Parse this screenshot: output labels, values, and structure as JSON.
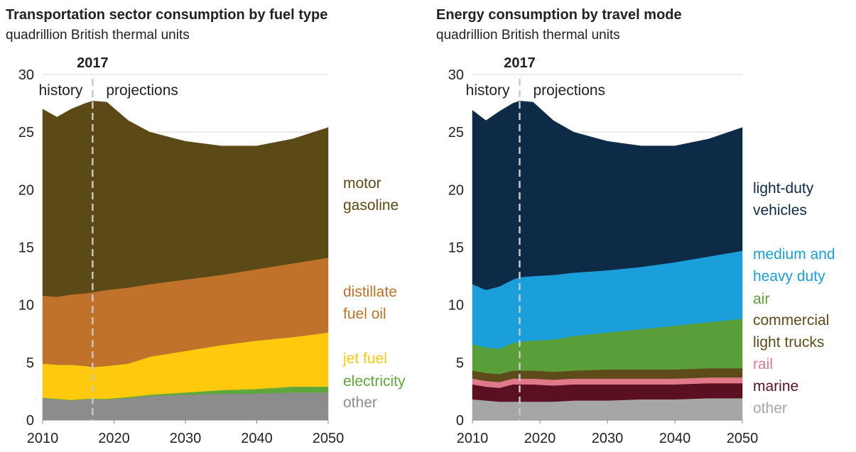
{
  "chart_data": [
    {
      "type": "stacked-area",
      "title": "Transportation sector consumption by fuel type",
      "subtitle": "quadrillion British thermal units",
      "marker": 2017,
      "annotations": [
        "history",
        "projections"
      ],
      "x": [
        2010,
        2012,
        2014,
        2016,
        2017,
        2019,
        2022,
        2025,
        2030,
        2035,
        2040,
        2045,
        2050
      ],
      "xlim": [
        2010,
        2050
      ],
      "xticks": [
        2010,
        2020,
        2030,
        2040,
        2050
      ],
      "ylim": [
        0,
        30
      ],
      "yticks": [
        0,
        5,
        10,
        15,
        20,
        25,
        30
      ],
      "grid": true,
      "series": [
        {
          "name": "other",
          "color": "#8c8c8c",
          "label_color": "#8c8c8c",
          "values": [
            1.9,
            1.8,
            1.7,
            1.8,
            1.8,
            1.8,
            1.9,
            2.1,
            2.2,
            2.3,
            2.3,
            2.4,
            2.4
          ]
        },
        {
          "name": "electricity",
          "color": "#5ea83b",
          "label_color": "#5ea83b",
          "values": [
            0.05,
            0.05,
            0.05,
            0.05,
            0.05,
            0.05,
            0.1,
            0.1,
            0.2,
            0.3,
            0.4,
            0.5,
            0.5
          ]
        },
        {
          "name": "jet fuel",
          "color": "#ffc90e",
          "label_color": "#ffc90e",
          "values": [
            2.95,
            2.95,
            3.05,
            2.85,
            2.75,
            2.85,
            2.9,
            3.3,
            3.6,
            3.9,
            4.2,
            4.3,
            4.7
          ]
        },
        {
          "name": "distillate fuel oil",
          "color": "#c0722a",
          "label_color": "#c0722a",
          "values": [
            5.9,
            5.9,
            6.1,
            6.3,
            6.5,
            6.6,
            6.6,
            6.3,
            6.2,
            6.1,
            6.2,
            6.4,
            6.5
          ]
        },
        {
          "name": "motor gasoline",
          "color": "#5c4a16",
          "label_color": "#5c4a16",
          "values": [
            16.2,
            15.6,
            16.1,
            16.5,
            16.6,
            16.3,
            14.5,
            13.2,
            12.0,
            11.2,
            10.7,
            10.8,
            11.3
          ]
        }
      ]
    },
    {
      "type": "stacked-area",
      "title": "Energy consumption by travel mode",
      "subtitle": "quadrillion British thermal units",
      "marker": 2017,
      "annotations": [
        "history",
        "projections"
      ],
      "x": [
        2010,
        2012,
        2014,
        2016,
        2017,
        2019,
        2022,
        2025,
        2030,
        2035,
        2040,
        2045,
        2050
      ],
      "xlim": [
        2010,
        2050
      ],
      "xticks": [
        2010,
        2020,
        2030,
        2040,
        2050
      ],
      "ylim": [
        0,
        30
      ],
      "yticks": [
        0,
        5,
        10,
        15,
        20,
        25,
        30
      ],
      "grid": true,
      "series": [
        {
          "name": "other",
          "color": "#a6a6a6",
          "label_color": "#a6a6a6",
          "values": [
            1.8,
            1.7,
            1.6,
            1.6,
            1.6,
            1.6,
            1.6,
            1.7,
            1.7,
            1.8,
            1.8,
            1.9,
            1.9
          ]
        },
        {
          "name": "marine",
          "color": "#5a1020",
          "label_color": "#5a1020",
          "values": [
            1.3,
            1.2,
            1.2,
            1.5,
            1.5,
            1.5,
            1.4,
            1.4,
            1.4,
            1.3,
            1.3,
            1.3,
            1.3
          ]
        },
        {
          "name": "rail",
          "color": "#e07a8a",
          "label_color": "#e07a8a",
          "values": [
            0.5,
            0.5,
            0.5,
            0.5,
            0.5,
            0.5,
            0.5,
            0.5,
            0.5,
            0.5,
            0.5,
            0.5,
            0.5
          ]
        },
        {
          "name": "commercial light trucks",
          "color": "#5e4b1a",
          "label_color": "#5e4b1a",
          "values": [
            0.7,
            0.7,
            0.7,
            0.7,
            0.7,
            0.7,
            0.7,
            0.7,
            0.8,
            0.8,
            0.8,
            0.8,
            0.8
          ]
        },
        {
          "name": "air",
          "color": "#5a9e3a",
          "label_color": "#5a9e3a",
          "values": [
            2.3,
            2.2,
            2.2,
            2.4,
            2.5,
            2.6,
            2.8,
            3.0,
            3.2,
            3.5,
            3.8,
            4.0,
            4.3
          ]
        },
        {
          "name": "medium and heavy duty",
          "color": "#1a9fdb",
          "label_color": "#1a9fdb",
          "values": [
            5.2,
            5.0,
            5.4,
            5.5,
            5.6,
            5.6,
            5.6,
            5.5,
            5.4,
            5.4,
            5.5,
            5.7,
            5.9
          ]
        },
        {
          "name": "light-duty vehicles",
          "color": "#0d2a47",
          "label_color": "#0d2a47",
          "values": [
            15.1,
            14.7,
            15.2,
            15.3,
            15.3,
            15.1,
            13.4,
            12.2,
            11.2,
            10.5,
            10.1,
            10.2,
            10.7
          ]
        }
      ]
    }
  ]
}
